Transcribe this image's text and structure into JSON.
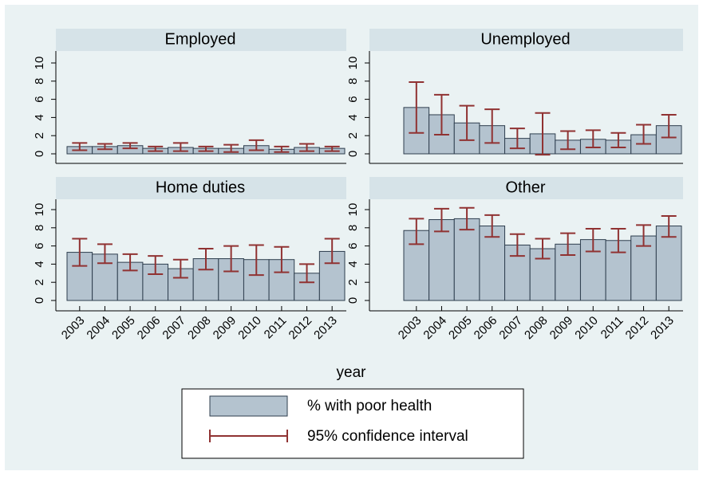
{
  "chart_data": {
    "type": "bar",
    "xlabel": "year",
    "categories": [
      "2003",
      "2004",
      "2005",
      "2006",
      "2007",
      "2008",
      "2009",
      "2010",
      "2011",
      "2012",
      "2013"
    ],
    "ylim": [
      0,
      10
    ],
    "yticks": [
      0,
      2,
      4,
      6,
      8,
      10
    ],
    "series_name": "% with poor health",
    "ci_name": "95% confidence interval",
    "bar_color": "#b4c3cf",
    "ci_color": "#903232",
    "panels": [
      {
        "title": "Employed",
        "values": [
          0.8,
          0.8,
          0.9,
          0.6,
          0.7,
          0.6,
          0.6,
          0.9,
          0.5,
          0.7,
          0.6
        ],
        "ci_low": [
          0.4,
          0.5,
          0.6,
          0.3,
          0.3,
          0.3,
          0.2,
          0.4,
          0.2,
          0.3,
          0.3
        ],
        "ci_high": [
          1.2,
          1.1,
          1.2,
          0.8,
          1.2,
          0.8,
          1.0,
          1.5,
          0.8,
          1.1,
          0.8
        ]
      },
      {
        "title": "Unemployed",
        "values": [
          5.1,
          4.3,
          3.4,
          3.1,
          1.7,
          2.2,
          1.5,
          1.6,
          1.5,
          2.1,
          3.1
        ],
        "ci_low": [
          2.3,
          2.1,
          1.5,
          1.2,
          0.6,
          -0.1,
          0.5,
          0.7,
          0.7,
          1.1,
          1.8
        ],
        "ci_high": [
          7.9,
          6.5,
          5.3,
          4.9,
          2.8,
          4.5,
          2.5,
          2.6,
          2.3,
          3.2,
          4.3
        ]
      },
      {
        "title": "Home duties",
        "values": [
          5.3,
          5.1,
          4.2,
          4.0,
          3.5,
          4.6,
          4.6,
          4.5,
          4.5,
          3.0,
          5.4
        ],
        "ci_low": [
          3.8,
          4.1,
          3.3,
          2.9,
          2.5,
          3.4,
          3.2,
          2.8,
          3.1,
          2.0,
          4.1
        ],
        "ci_high": [
          6.8,
          6.2,
          5.1,
          4.9,
          4.5,
          5.7,
          6.0,
          6.1,
          5.9,
          4.0,
          6.8
        ]
      },
      {
        "title": "Other",
        "values": [
          7.7,
          8.9,
          9.0,
          8.2,
          6.1,
          5.7,
          6.2,
          6.7,
          6.6,
          7.1,
          8.2
        ],
        "ci_low": [
          6.2,
          7.6,
          7.8,
          7.0,
          4.9,
          4.6,
          5.0,
          5.4,
          5.3,
          6.0,
          7.0
        ],
        "ci_high": [
          9.0,
          10.1,
          10.2,
          9.4,
          7.3,
          6.8,
          7.4,
          7.9,
          7.9,
          8.3,
          9.3
        ]
      }
    ]
  }
}
